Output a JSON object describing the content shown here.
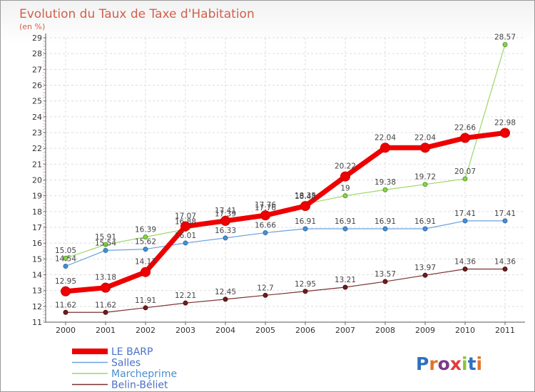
{
  "chart_data": {
    "type": "line",
    "title": "Evolution du Taux de Taxe d'Habitation",
    "subtitle": "(en %)",
    "x": [
      "2000",
      "2001",
      "2002",
      "2003",
      "2004",
      "2005",
      "2006",
      "2007",
      "2008",
      "2009",
      "2010",
      "2011"
    ],
    "ylim": [
      11,
      29
    ],
    "yticks": [
      11,
      12,
      13,
      14,
      15,
      16,
      17,
      18,
      19,
      20,
      21,
      22,
      23,
      24,
      25,
      26,
      27,
      28,
      29
    ],
    "grid": true,
    "legend_position": "bottom-left",
    "series": [
      {
        "name": "LE BARP",
        "color": "#ee0000",
        "values": [
          12.95,
          13.18,
          14.17,
          17.07,
          17.41,
          17.76,
          18.35,
          20.22,
          22.04,
          22.04,
          22.66,
          22.98
        ],
        "labels": [
          "12.95",
          "13.18",
          "14.17",
          "17.07",
          "17.41",
          "17.76",
          "18.35",
          "20.22",
          "22.04",
          "22.04",
          "22.66",
          "22.98"
        ]
      },
      {
        "name": "Salles",
        "color": "#4a8ed0",
        "values": [
          14.54,
          15.54,
          15.62,
          16.01,
          16.33,
          16.66,
          16.91,
          16.91,
          16.91,
          16.91,
          17.41,
          17.41
        ],
        "labels": [
          "14.54",
          "15.54",
          "15.62",
          "16.01",
          "16.33",
          "16.66",
          "16.91",
          "16.91",
          "16.91",
          "16.91",
          "17.41",
          "17.41"
        ]
      },
      {
        "name": "Marcheprime",
        "color": "#88d44a",
        "values": [
          15.05,
          15.91,
          16.39,
          16.88,
          17.39,
          17.76,
          18.48,
          19,
          19.38,
          19.72,
          20.07,
          28.57
        ],
        "labels": [
          "15.05",
          "15.91",
          "16.39",
          "16.88",
          "17.39",
          "17.76",
          "18.48",
          "19",
          "19.38",
          "19.72",
          "20.07",
          "28.57"
        ]
      },
      {
        "name": "Belin-Béliet",
        "color": "#6e1e1e",
        "values": [
          11.62,
          11.62,
          11.91,
          12.21,
          12.45,
          12.7,
          12.95,
          13.21,
          13.57,
          13.97,
          14.36,
          14.36
        ],
        "labels": [
          "11.62",
          "11.62",
          "11.91",
          "12.21",
          "12.45",
          "12.7",
          "12.95",
          "13.21",
          "13.57",
          "13.97",
          "14.36",
          "14.36"
        ]
      }
    ]
  },
  "logo": {
    "text": "Proxiti"
  }
}
